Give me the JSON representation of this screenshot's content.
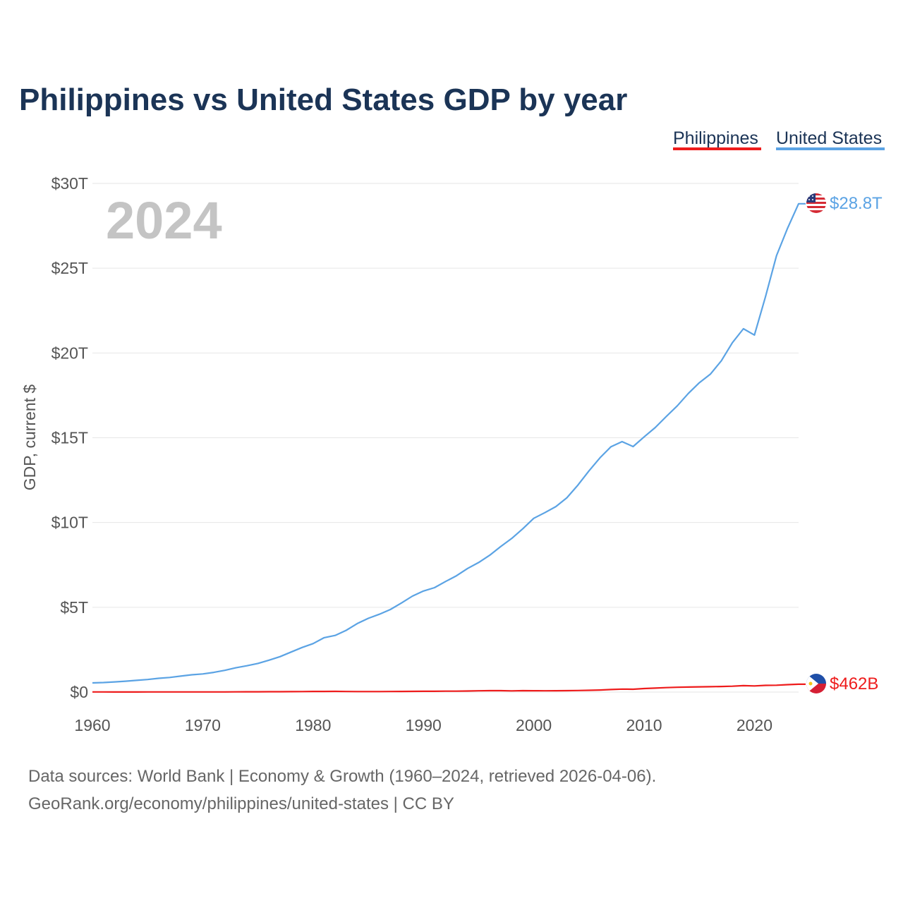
{
  "chart_data": {
    "type": "line",
    "title": "Philippines vs United States GDP by year",
    "ylabel": "GDP, current $",
    "xlabel": "",
    "xlim": [
      1960,
      2024
    ],
    "ylim": [
      0,
      30
    ],
    "y_unit": "trillions USD",
    "year_badge": "2024",
    "x_ticks": [
      1960,
      1970,
      1980,
      1990,
      2000,
      2010,
      2020
    ],
    "x_tick_labels": [
      "1960",
      "1970",
      "1980",
      "1990",
      "2000",
      "2010",
      "2020"
    ],
    "y_ticks": [
      0,
      5,
      10,
      15,
      20,
      25,
      30
    ],
    "y_tick_labels": [
      "$0",
      "$5T",
      "$10T",
      "$15T",
      "$20T",
      "$25T",
      "$30T"
    ],
    "legend": {
      "placement": "top-right",
      "entries": [
        "Philippines",
        "United States"
      ]
    },
    "x": [
      1960,
      1961,
      1962,
      1963,
      1964,
      1965,
      1966,
      1967,
      1968,
      1969,
      1970,
      1971,
      1972,
      1973,
      1974,
      1975,
      1976,
      1977,
      1978,
      1979,
      1980,
      1981,
      1982,
      1983,
      1984,
      1985,
      1986,
      1987,
      1988,
      1989,
      1990,
      1991,
      1992,
      1993,
      1994,
      1995,
      1996,
      1997,
      1998,
      1999,
      2000,
      2001,
      2002,
      2003,
      2004,
      2005,
      2006,
      2007,
      2008,
      2009,
      2010,
      2011,
      2012,
      2013,
      2014,
      2015,
      2016,
      2017,
      2018,
      2019,
      2020,
      2021,
      2022,
      2023,
      2024
    ],
    "series": [
      {
        "name": "Philippines",
        "color": "#ee1c1c",
        "end_label": "$462B",
        "values": [
          0.007,
          0.008,
          0.005,
          0.006,
          0.006,
          0.007,
          0.007,
          0.008,
          0.009,
          0.009,
          0.007,
          0.008,
          0.009,
          0.011,
          0.015,
          0.016,
          0.019,
          0.021,
          0.025,
          0.03,
          0.036,
          0.039,
          0.04,
          0.034,
          0.031,
          0.031,
          0.03,
          0.033,
          0.038,
          0.043,
          0.044,
          0.045,
          0.053,
          0.054,
          0.064,
          0.074,
          0.083,
          0.082,
          0.072,
          0.082,
          0.081,
          0.076,
          0.081,
          0.083,
          0.091,
          0.103,
          0.122,
          0.149,
          0.174,
          0.168,
          0.208,
          0.234,
          0.262,
          0.284,
          0.297,
          0.306,
          0.318,
          0.328,
          0.347,
          0.377,
          0.362,
          0.394,
          0.404,
          0.437,
          0.462
        ]
      },
      {
        "name": "United States",
        "color": "#5ba3e4",
        "end_label": "$28.8T",
        "values": [
          0.54,
          0.56,
          0.6,
          0.64,
          0.69,
          0.74,
          0.81,
          0.86,
          0.94,
          1.02,
          1.07,
          1.16,
          1.28,
          1.43,
          1.55,
          1.69,
          1.88,
          2.09,
          2.36,
          2.63,
          2.86,
          3.21,
          3.34,
          3.64,
          4.04,
          4.35,
          4.59,
          4.87,
          5.25,
          5.66,
          5.96,
          6.16,
          6.52,
          6.86,
          7.29,
          7.64,
          8.07,
          8.58,
          9.06,
          9.63,
          10.25,
          10.58,
          10.94,
          11.46,
          12.21,
          13.04,
          13.82,
          14.47,
          14.77,
          14.48,
          15.05,
          15.6,
          16.25,
          16.88,
          17.61,
          18.24,
          18.75,
          19.54,
          20.61,
          21.43,
          21.06,
          23.32,
          25.74,
          27.36,
          28.8
        ]
      }
    ],
    "source_lines": [
      "Data sources: World Bank | Economy & Growth (1960–2024, retrieved 2026-04-06).",
      "GeoRank.org/economy/philippines/united-states | CC BY"
    ]
  },
  "colors": {
    "title": "#1b3456",
    "grid": "#e6e6e6",
    "badge": "#c4c4c4"
  },
  "icons": {
    "philippines": "philippines-flag-icon",
    "united_states": "us-flag-icon"
  }
}
